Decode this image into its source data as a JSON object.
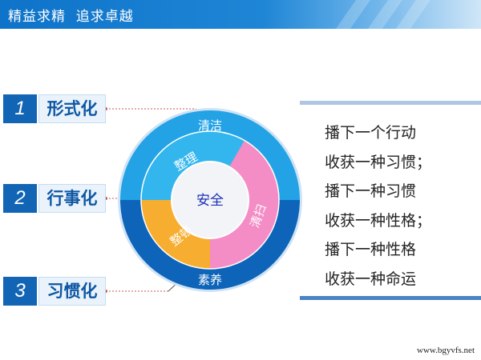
{
  "header": {
    "title": "精益求精  追求卓越"
  },
  "steps": [
    {
      "number": "1",
      "label": "形式化"
    },
    {
      "number": "2",
      "label": "行事化"
    },
    {
      "number": "3",
      "label": "习惯化"
    }
  ],
  "diagram": {
    "center": "安全",
    "outer_top": "清洁",
    "outer_bottom": "素养",
    "inner_top": "整理",
    "inner_right": "清扫",
    "inner_left": "整顿"
  },
  "quote": {
    "lines": [
      "播下一个行动",
      "收获一种习惯；",
      "播下一种习惯",
      "收获一种性格；",
      "播下一种性格",
      "收获一种命运"
    ]
  },
  "footer": {
    "url": "www.bgyvfs.net"
  },
  "colors": {
    "banner_blue": "#0e73c9",
    "outer_ring_light": "#23a3e6",
    "outer_ring_dark": "#0d64b9",
    "seg_cyan": "#33b6ee",
    "seg_pink": "#f48cc6",
    "seg_orange": "#f7ad2f",
    "center_text": "#1b2fb8"
  }
}
